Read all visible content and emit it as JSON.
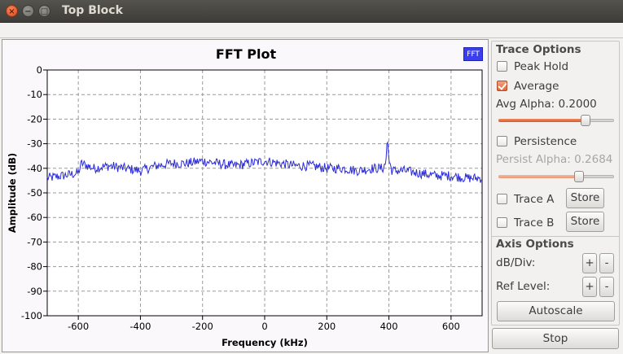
{
  "window": {
    "title": "Top Block",
    "close_glyph": "×",
    "min_glyph": "−",
    "max_glyph": "□"
  },
  "plot": {
    "legend_label": "FFT",
    "accent_color": "#3a3ef0"
  },
  "chart_data": {
    "type": "line",
    "title": "FFT Plot",
    "xlabel": "Frequency (kHz)",
    "ylabel": "Amplitude (dB)",
    "xlim": [
      -700,
      700
    ],
    "ylim": [
      -100,
      0
    ],
    "xticks": [
      -600,
      -400,
      -200,
      0,
      200,
      400,
      600
    ],
    "yticks": [
      0,
      -10,
      -20,
      -30,
      -40,
      -50,
      -60,
      -70,
      -80,
      -90,
      -100
    ],
    "grid": true,
    "series": [
      {
        "color": "#2b2bd6",
        "x": [
          -700,
          -650,
          -600,
          -590,
          -550,
          -500,
          -450,
          -400,
          -350,
          -300,
          -250,
          -200,
          -150,
          -100,
          -50,
          0,
          50,
          100,
          150,
          200,
          250,
          300,
          350,
          380,
          390,
          395,
          400,
          410,
          450,
          500,
          550,
          600,
          650,
          700
        ],
        "values": [
          -44,
          -43,
          -42,
          -38,
          -40,
          -39,
          -40,
          -41,
          -39,
          -38,
          -38,
          -37,
          -38,
          -39,
          -38,
          -37,
          -38,
          -39,
          -39,
          -40,
          -40,
          -41,
          -40,
          -40,
          -38,
          -27,
          -37,
          -41,
          -41,
          -42,
          -43,
          -43,
          -44,
          -44
        ],
        "noise_db": 2.0
      }
    ]
  },
  "trace_options": {
    "title": "Trace Options",
    "peak_hold": {
      "label": "Peak Hold",
      "checked": false
    },
    "average": {
      "label": "Average",
      "checked": true
    },
    "avg_alpha": {
      "label": "Avg Alpha: 0.2000",
      "value": 0.2,
      "slider_fraction": 0.75
    },
    "persistence": {
      "label": "Persistence",
      "checked": false
    },
    "persist_alpha": {
      "label": "Persist Alpha: 0.2684",
      "value": 0.2684,
      "slider_fraction": 0.7
    },
    "trace_a": {
      "label": "Trace A",
      "checked": false,
      "store_label": "Store"
    },
    "trace_b": {
      "label": "Trace B",
      "checked": false,
      "store_label": "Store"
    }
  },
  "axis_options": {
    "title": "Axis Options",
    "db_div_label": "dB/Div:",
    "ref_level_label": "Ref Level:",
    "plus_label": "+",
    "minus_label": "-",
    "autoscale_label": "Autoscale"
  },
  "stop_label": "Stop"
}
